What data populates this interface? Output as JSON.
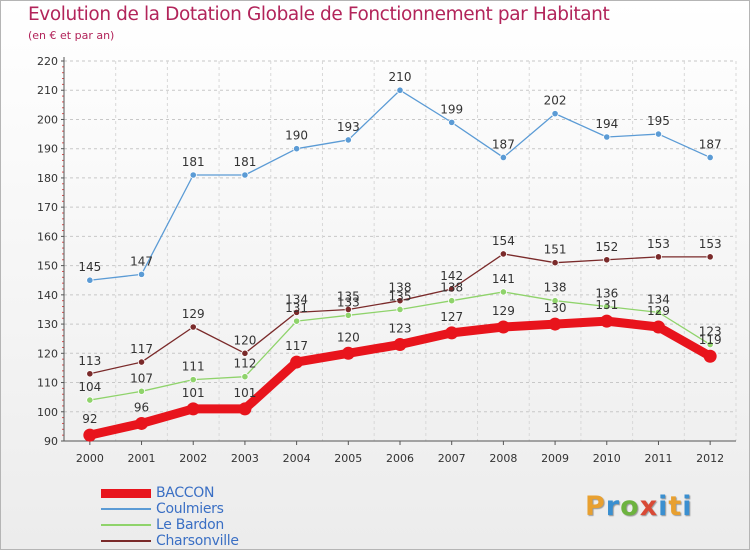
{
  "header": {
    "title": "Evolution de la Dotation Globale de Fonctionnement par Habitant",
    "subtitle": "(en € et par an)"
  },
  "logo": {
    "text": "Proxiti",
    "letters": [
      "P",
      "r",
      "o",
      "x",
      "i",
      "t",
      "i"
    ],
    "colors": [
      "#e8a030",
      "#3a8fd0",
      "#6db33f",
      "#d94a36",
      "#3a8fd0",
      "#e8a030",
      "#3a8fd0"
    ]
  },
  "chart_data": {
    "type": "line",
    "title": "Evolution de la Dotation Globale de Fonctionnement par Habitant",
    "subtitle": "(en € et par an)",
    "xlabel": "",
    "ylabel": "",
    "x": [
      "2000",
      "2001",
      "2002",
      "2003",
      "2004",
      "2005",
      "2006",
      "2007",
      "2008",
      "2009",
      "2010",
      "2011",
      "2012"
    ],
    "ylim": [
      90,
      220
    ],
    "yticks": [
      90,
      100,
      110,
      120,
      130,
      140,
      150,
      160,
      170,
      180,
      190,
      200,
      210,
      220
    ],
    "grid": "horizontal",
    "legend_position": "bottom-left",
    "series": [
      {
        "name": "BACCON",
        "color": "#e8141c",
        "values": [
          92,
          96,
          101,
          101,
          117,
          120,
          123,
          127,
          129,
          130,
          131,
          129,
          119
        ],
        "labels": [
          "92",
          "96",
          "101",
          "101",
          "117",
          "120",
          "123",
          "127",
          "129",
          "130",
          "131",
          "129",
          "119"
        ]
      },
      {
        "name": "Coulmiers",
        "color": "#5b9bd5",
        "values": [
          145,
          147,
          181,
          181,
          190,
          193,
          210,
          199,
          187,
          202,
          194,
          195,
          187
        ],
        "labels": [
          "145",
          "147",
          "181",
          "181",
          "190",
          "193",
          "210",
          "199",
          "187",
          "202",
          "194",
          "195",
          "187"
        ]
      },
      {
        "name": "Le Bardon",
        "color": "#8fd36b",
        "values": [
          104,
          107,
          111,
          112,
          131,
          133,
          135,
          138,
          141,
          138,
          136,
          134,
          123
        ],
        "labels": [
          "104",
          "107",
          "111",
          "112",
          "131",
          "133",
          "135",
          "138",
          "141",
          "138",
          "136",
          "134",
          "123"
        ]
      },
      {
        "name": "Charsonville",
        "color": "#7a2a2a",
        "values": [
          113,
          117,
          129,
          120,
          134,
          135,
          138,
          142,
          154,
          151,
          152,
          153,
          153
        ],
        "labels": [
          "113",
          "117",
          "129",
          "120",
          "134",
          "135",
          "138",
          "142",
          "154",
          "151",
          "152",
          "153",
          "153"
        ]
      }
    ]
  }
}
